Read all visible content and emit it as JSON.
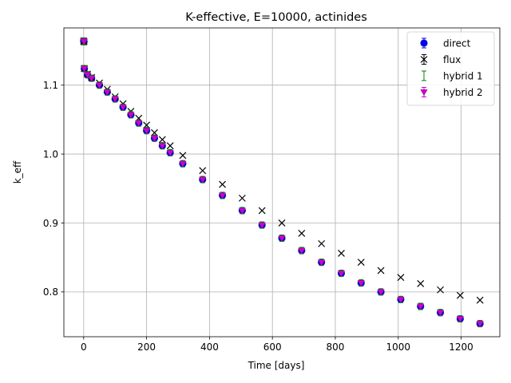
{
  "chart_data": {
    "type": "scatter",
    "title": "K-effective, E=10000, actinides",
    "xlabel": "Time [days]",
    "ylabel": "k_eff",
    "xlim": [
      -63,
      1323
    ],
    "ylim": [
      0.735,
      1.183
    ],
    "xticks": [
      0,
      200,
      400,
      600,
      800,
      1000,
      1200
    ],
    "yticks": [
      0.8,
      0.9,
      1.0,
      1.1
    ],
    "xtick_labels": [
      "0",
      "200",
      "400",
      "600",
      "800",
      "1000",
      "1200"
    ],
    "ytick_labels": [
      "0.8",
      "0.9",
      "1.0",
      "1.1"
    ],
    "grid": true,
    "legend_position": "top-right",
    "series": [
      {
        "name": "direct",
        "marker": "circle",
        "color": "#0000ff",
        "x": [
          0,
          1,
          2,
          12,
          25,
          50,
          75,
          100,
          125,
          150,
          175,
          200,
          225,
          250,
          275,
          315,
          378,
          441,
          504,
          567,
          630,
          693,
          756,
          819,
          882,
          945,
          1008,
          1071,
          1134,
          1197,
          1260
        ],
        "y": [
          1.164,
          1.163,
          1.124,
          1.115,
          1.11,
          1.1,
          1.09,
          1.08,
          1.068,
          1.057,
          1.045,
          1.034,
          1.023,
          1.012,
          1.002,
          0.986,
          0.963,
          0.94,
          0.918,
          0.897,
          0.878,
          0.86,
          0.843,
          0.827,
          0.813,
          0.8,
          0.789,
          0.779,
          0.77,
          0.761,
          0.754
        ]
      },
      {
        "name": "flux",
        "marker": "x",
        "color": "#000000",
        "x": [
          0,
          1,
          2,
          12,
          25,
          50,
          75,
          100,
          125,
          150,
          175,
          200,
          225,
          250,
          275,
          315,
          378,
          441,
          504,
          567,
          630,
          693,
          756,
          819,
          882,
          945,
          1008,
          1071,
          1134,
          1197,
          1260
        ],
        "y": [
          1.164,
          1.163,
          1.124,
          1.116,
          1.111,
          1.103,
          1.094,
          1.083,
          1.073,
          1.062,
          1.052,
          1.042,
          1.031,
          1.021,
          1.012,
          0.998,
          0.976,
          0.956,
          0.936,
          0.918,
          0.9,
          0.885,
          0.87,
          0.856,
          0.843,
          0.831,
          0.821,
          0.812,
          0.803,
          0.795,
          0.788
        ]
      },
      {
        "name": "hybrid 1",
        "marker": "errorbar",
        "color": "#008000",
        "x": [
          0,
          1,
          2,
          12,
          25,
          50,
          75,
          100,
          125,
          150,
          175,
          200,
          225,
          250,
          275,
          315,
          378,
          441,
          504,
          567,
          630,
          693,
          756,
          819,
          882,
          945,
          1008,
          1071,
          1134,
          1197,
          1260
        ],
        "y": [
          1.164,
          1.163,
          1.124,
          1.115,
          1.11,
          1.1,
          1.09,
          1.08,
          1.068,
          1.057,
          1.045,
          1.034,
          1.023,
          1.012,
          1.002,
          0.986,
          0.963,
          0.94,
          0.918,
          0.897,
          0.878,
          0.86,
          0.843,
          0.827,
          0.813,
          0.8,
          0.789,
          0.779,
          0.77,
          0.761,
          0.754
        ]
      },
      {
        "name": "hybrid 2",
        "marker": "triangle-down",
        "color": "#cc00cc",
        "x": [
          0,
          1,
          2,
          12,
          25,
          50,
          75,
          100,
          125,
          150,
          175,
          200,
          225,
          250,
          275,
          315,
          378,
          441,
          504,
          567,
          630,
          693,
          756,
          819,
          882,
          945,
          1008,
          1071,
          1134,
          1197,
          1260
        ],
        "y": [
          1.164,
          1.163,
          1.124,
          1.115,
          1.11,
          1.1,
          1.09,
          1.08,
          1.068,
          1.057,
          1.045,
          1.034,
          1.023,
          1.012,
          1.002,
          0.986,
          0.963,
          0.94,
          0.918,
          0.897,
          0.878,
          0.86,
          0.843,
          0.827,
          0.813,
          0.8,
          0.789,
          0.779,
          0.77,
          0.761,
          0.754
        ]
      }
    ]
  }
}
